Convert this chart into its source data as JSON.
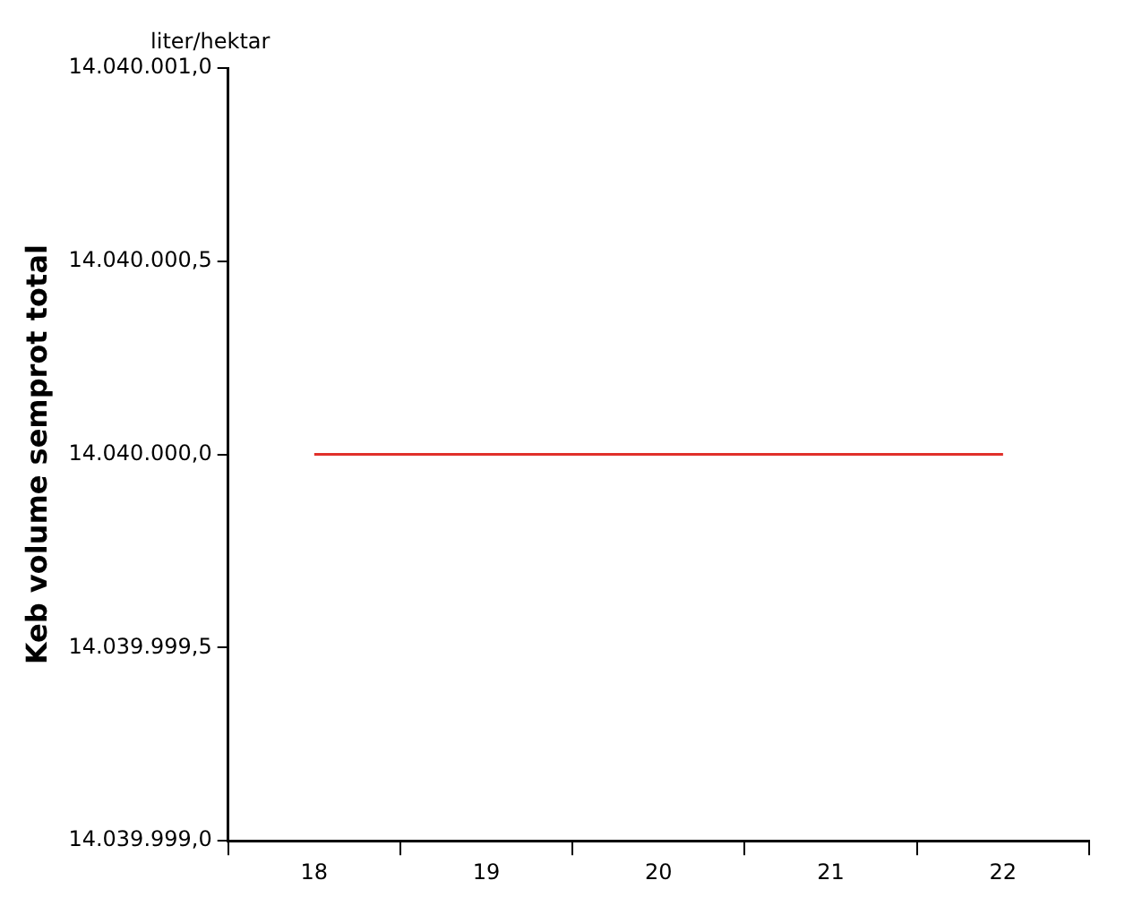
{
  "chart_data": {
    "type": "line",
    "ylabel": "Keb volume semprot total",
    "annotations": [
      "liter/hektar"
    ],
    "categories": [
      "18",
      "19",
      "20",
      "21",
      "22"
    ],
    "series": [
      {
        "color": "#e0302a",
        "values": [
          14040000,
          14040000,
          14040000,
          14040000,
          14040000
        ]
      }
    ],
    "ylim": [
      14039999,
      14040001
    ],
    "yticks": [
      {
        "value": 14039999,
        "label": "14.039.999,0"
      },
      {
        "value": 14039999.5,
        "label": "14.039.999,5"
      },
      {
        "value": 14040000,
        "label": "14.040.000,0"
      },
      {
        "value": 14040000.5,
        "label": "14.040.000,5"
      },
      {
        "value": 14040001,
        "label": "14.040.001,0"
      }
    ],
    "grid": false,
    "legend": false,
    "marker": "none",
    "line_style": "solid"
  }
}
